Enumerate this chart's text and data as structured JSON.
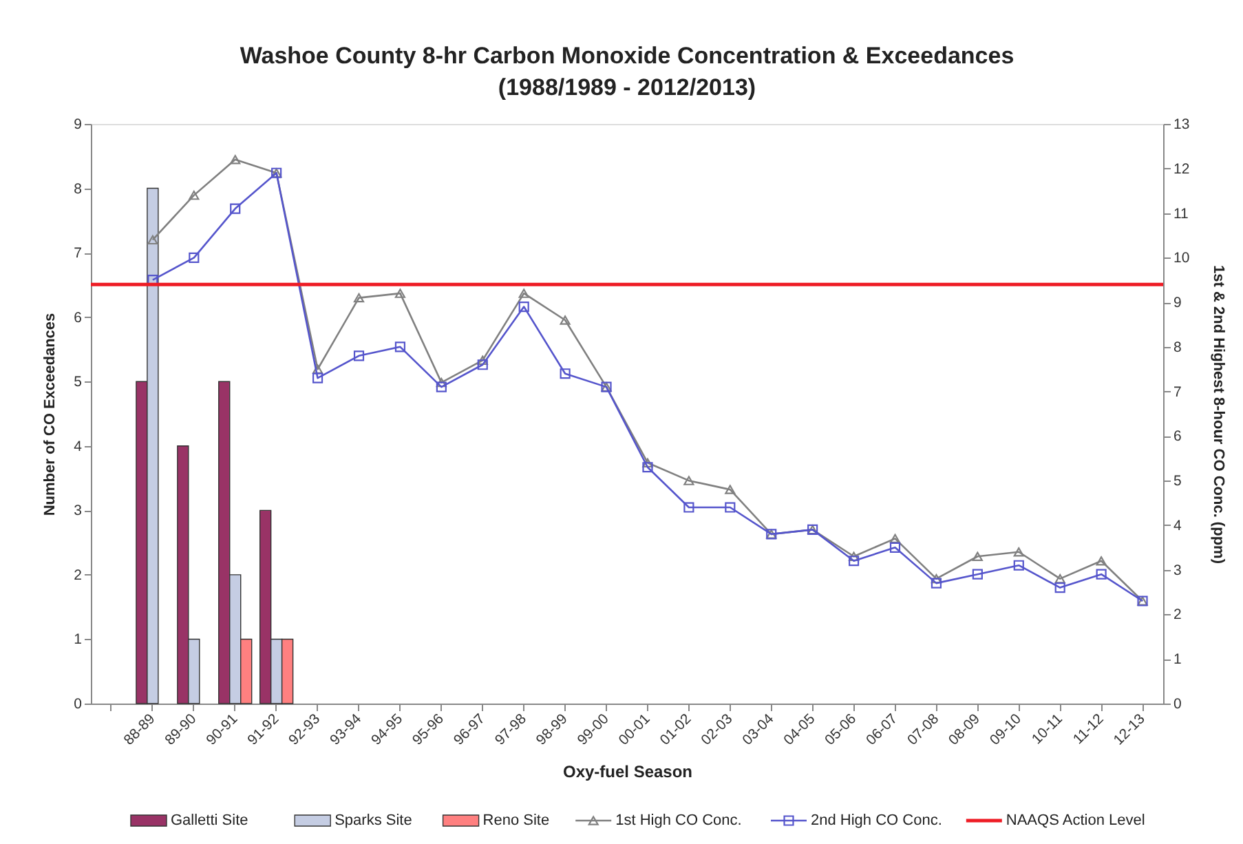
{
  "chart_data": {
    "type": "bar",
    "title": "Washoe County 8-hr Carbon Monoxide Concentration & Exceedances",
    "subtitle": "(1988/1989 - 2012/2013)",
    "xlabel": "Oxy-fuel Season",
    "ylabel": "Number of CO Exceedances",
    "y2label": "1st & 2nd Highest 8-hour CO Conc. (ppm)",
    "categories": [
      null,
      "88-89",
      "89-90",
      "90-91",
      "91-92",
      "92-93",
      "93-94",
      "94-95",
      "95-96",
      "96-97",
      "97-98",
      "98-99",
      "99-00",
      "00-01",
      "01-02",
      "02-03",
      "03-04",
      "04-05",
      "05-06",
      "06-07",
      "07-08",
      "08-09",
      "09-10",
      "10-11",
      "11-12",
      "12-13"
    ],
    "series": [
      {
        "name": "Galletti Site",
        "color": "#993366",
        "values": [
          null,
          5,
          4,
          5,
          3,
          null,
          null,
          null,
          null,
          null,
          null,
          null,
          null,
          null,
          null,
          null,
          null,
          null,
          null,
          null,
          null,
          null,
          null,
          null,
          null,
          null
        ]
      },
      {
        "name": "Sparks Site",
        "color": "#c5cde3",
        "values": [
          null,
          8,
          1,
          2,
          1,
          null,
          null,
          null,
          null,
          null,
          null,
          null,
          null,
          null,
          null,
          null,
          null,
          null,
          null,
          null,
          null,
          null,
          null,
          null,
          null,
          null
        ]
      },
      {
        "name": "Reno Site",
        "color": "#ff8080",
        "values": [
          null,
          null,
          null,
          1,
          1,
          null,
          null,
          null,
          null,
          null,
          null,
          null,
          null,
          null,
          null,
          null,
          null,
          null,
          null,
          null,
          null,
          null,
          null,
          null,
          null,
          null
        ]
      },
      {
        "name": "1st High CO Conc.",
        "type": "line",
        "axis": "y2",
        "color": "#808080",
        "marker": "triangle",
        "values": [
          null,
          10.4,
          11.4,
          12.2,
          11.9,
          7.5,
          9.1,
          9.2,
          7.2,
          7.7,
          9.2,
          8.6,
          7.1,
          5.4,
          5.0,
          4.8,
          3.8,
          3.9,
          3.3,
          3.7,
          2.8,
          3.3,
          3.4,
          2.8,
          3.2,
          2.3
        ]
      },
      {
        "name": "2nd High CO Conc.",
        "type": "line",
        "axis": "y2",
        "color": "#5555cc",
        "marker": "square",
        "values": [
          null,
          9.5,
          10.0,
          11.1,
          11.9,
          7.3,
          7.8,
          8.0,
          7.1,
          7.6,
          8.9,
          7.4,
          7.1,
          5.3,
          4.4,
          4.4,
          3.8,
          3.9,
          3.2,
          3.5,
          2.7,
          2.9,
          3.1,
          2.6,
          2.9,
          2.3
        ]
      }
    ],
    "ylim": [
      0,
      9
    ],
    "yticks": [
      0,
      1,
      2,
      3,
      4,
      5,
      6,
      7,
      8,
      9
    ],
    "y2lim": [
      0,
      13
    ],
    "y2ticks": [
      0,
      1,
      2,
      3,
      4,
      5,
      6,
      7,
      8,
      9,
      10,
      11,
      12,
      13
    ],
    "ref_lines": [
      {
        "axis": "y2",
        "value": 9.4,
        "label": "NAAQS Action Level",
        "color": "#ee1c25"
      }
    ],
    "legend": "bottom"
  }
}
